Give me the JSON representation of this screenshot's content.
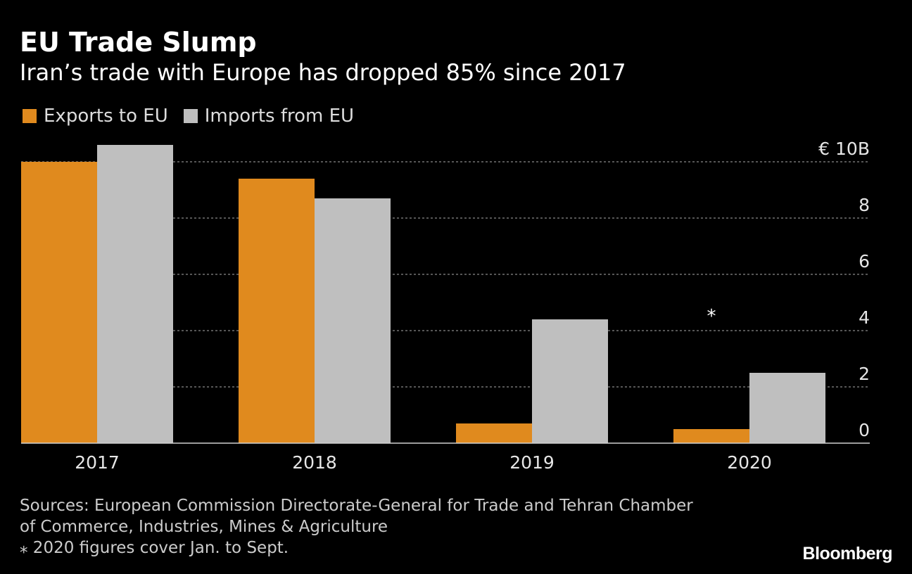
{
  "header": {
    "title": "EU Trade Slump",
    "subtitle": "Iran’s trade with Europe has dropped 85% since 2017"
  },
  "legend": [
    {
      "label": "Exports to EU",
      "color": "#e08a1e"
    },
    {
      "label": "Imports from EU",
      "color": "#bfbfbf"
    }
  ],
  "chart_data": {
    "type": "bar",
    "categories": [
      "2017",
      "2018",
      "2019",
      "2020"
    ],
    "series": [
      {
        "name": "Exports to EU",
        "color": "#e08a1e",
        "values": [
          10.0,
          9.4,
          0.7,
          0.5
        ]
      },
      {
        "name": "Imports from EU",
        "color": "#bfbfbf",
        "values": [
          10.6,
          8.7,
          4.4,
          2.5
        ]
      }
    ],
    "ylim": [
      0,
      10
    ],
    "yticks": [
      0,
      2,
      4,
      6,
      8,
      10
    ],
    "ytick_labels": [
      "0",
      "2",
      "4",
      "6",
      "8",
      "€ 10B"
    ],
    "grid": true,
    "y_axis_side": "right",
    "annotation": {
      "category": "2020",
      "text": "⁎"
    }
  },
  "footer": {
    "sources_line1": "Sources: European Commission Directorate-General for Trade and Tehran Chamber",
    "sources_line2": "of Commerce, Industries, Mines & Agriculture",
    "note": "⁎ 2020 figures cover Jan. to Sept.",
    "brand": "Bloomberg"
  }
}
